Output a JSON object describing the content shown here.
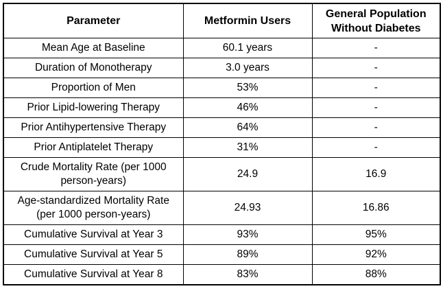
{
  "chart_data": {
    "type": "table",
    "title": "",
    "columns": [
      "Parameter",
      "Metformin Users",
      "General Population Without Diabetes"
    ],
    "rows": [
      [
        "Mean Age at Baseline",
        "60.1 years",
        "-"
      ],
      [
        "Duration of Monotherapy",
        "3.0 years",
        "-"
      ],
      [
        "Proportion of Men",
        "53%",
        "-"
      ],
      [
        "Prior Lipid-lowering Therapy",
        "46%",
        "-"
      ],
      [
        "Prior Antihypertensive Therapy",
        "64%",
        "-"
      ],
      [
        "Prior Antiplatelet Therapy",
        "31%",
        "-"
      ],
      [
        "Crude Mortality Rate (per 1000 person-years)",
        "24.9",
        "16.9"
      ],
      [
        "Age-standardized Mortality Rate (per 1000 person-years)",
        "24.93",
        "16.86"
      ],
      [
        "Cumulative Survival at Year 3",
        "93%",
        "95%"
      ],
      [
        "Cumulative Survival at Year 5",
        "89%",
        "92%"
      ],
      [
        "Cumulative Survival at Year 8",
        "83%",
        "88%"
      ]
    ],
    "layout": {
      "grid": true,
      "cell_alignment": "center",
      "header_style": "bold"
    },
    "colors": {
      "border": "#000000",
      "text": "#000000",
      "background": "#ffffff"
    }
  }
}
